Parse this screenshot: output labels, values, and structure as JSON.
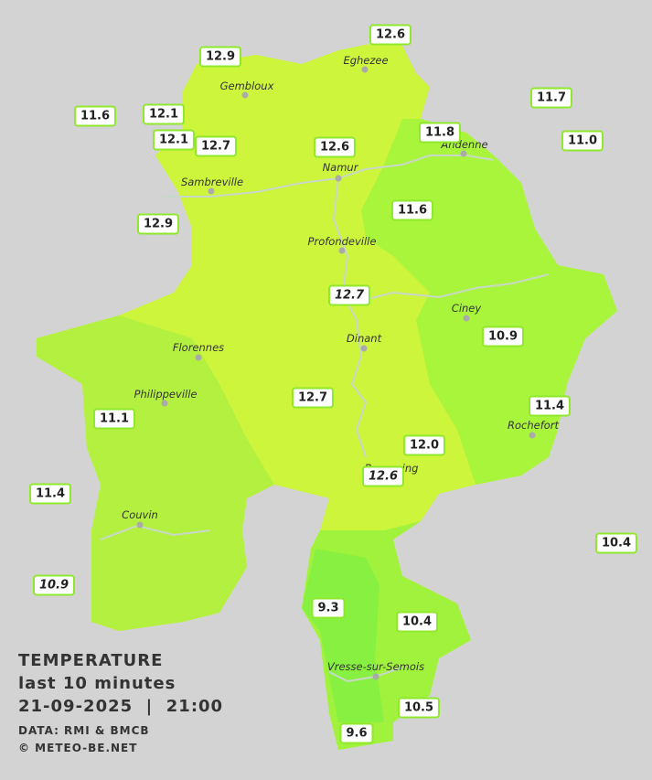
{
  "legend": {
    "title": "TEMPERATURE",
    "subtitle": "last 10 minutes",
    "datetime": "21-09-2025  |  21:00",
    "source": "DATA: RMI & BMCB",
    "credit": "© METEO-BE.NET"
  },
  "cities": [
    "Eghezee",
    "Gembloux",
    "Andenne",
    "Namur",
    "Sambreville",
    "Profondeville",
    "Ciney",
    "Dinant",
    "Florennes",
    "Philippeville",
    "Rochefort",
    "Beauraing",
    "Couvin",
    "Vresse-sur-Semois"
  ],
  "stations": [
    {
      "label": "12.6"
    },
    {
      "label": "12.9"
    },
    {
      "label": "12.1"
    },
    {
      "label": "11.6"
    },
    {
      "label": "12.1"
    },
    {
      "label": "12.7"
    },
    {
      "label": "12.6"
    },
    {
      "label": "11.8"
    },
    {
      "label": "11.7"
    },
    {
      "label": "11.0"
    },
    {
      "label": "11.6"
    },
    {
      "label": "12.9"
    },
    {
      "label": "12.7",
      "italic": true
    },
    {
      "label": "10.9"
    },
    {
      "label": "12.7"
    },
    {
      "label": "11.4"
    },
    {
      "label": "11.1"
    },
    {
      "label": "12.0"
    },
    {
      "label": "12.6",
      "italic": true
    },
    {
      "label": "11.4"
    },
    {
      "label": "10.4"
    },
    {
      "label": "10.9",
      "italic": true
    },
    {
      "label": "9.3"
    },
    {
      "label": "10.4"
    },
    {
      "label": "10.5"
    },
    {
      "label": "9.6"
    }
  ]
}
